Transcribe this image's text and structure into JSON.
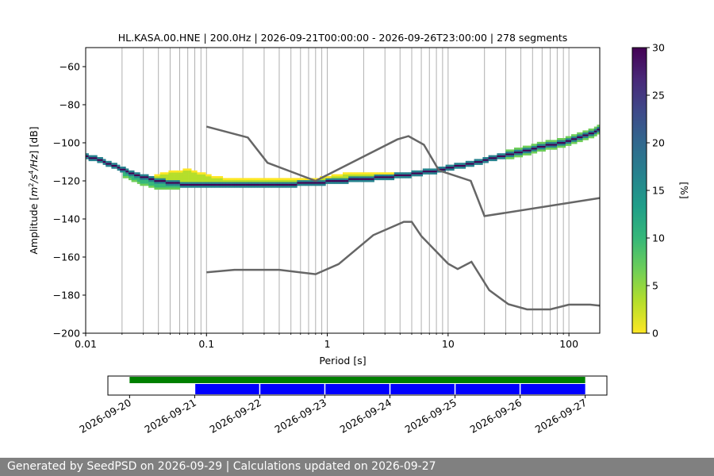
{
  "chart_data": [
    {
      "type": "heatmap",
      "title": "HL.KASA.00.HNE | 200.0Hz | 2026-09-21T00:00:00 - 2026-09-26T23:00:00 | 278 segments",
      "xlabel": "Period [s]",
      "ylabel_parts": [
        "Amplitude [",
        "m",
        "2",
        "/",
        "s",
        "4",
        "/",
        "Hz",
        "] [dB]"
      ],
      "x_scale": "log",
      "xlim": [
        0.01,
        180
      ],
      "ylim": [
        -200,
        -50
      ],
      "xticks": [
        {
          "value": 0.01,
          "label": "0.01"
        },
        {
          "value": 0.1,
          "label": "0.1"
        },
        {
          "value": 1,
          "label": "1"
        },
        {
          "value": 10,
          "label": "10"
        },
        {
          "value": 100,
          "label": "100"
        }
      ],
      "yticks": [
        {
          "value": -60,
          "label": "−60"
        },
        {
          "value": -80,
          "label": "−80"
        },
        {
          "value": -100,
          "label": "−100"
        },
        {
          "value": -120,
          "label": "−120"
        },
        {
          "value": -140,
          "label": "−140"
        },
        {
          "value": -160,
          "label": "−160"
        },
        {
          "value": -180,
          "label": "−180"
        },
        {
          "value": -200,
          "label": "−200"
        }
      ],
      "vertical_grid_periods": [
        0.1,
        0.2,
        0.3,
        0.4,
        0.5,
        0.6,
        0.7,
        0.8,
        0.9,
        1,
        2,
        3,
        4,
        5,
        6,
        7,
        8,
        9,
        10,
        20,
        30,
        40,
        50,
        60,
        70,
        80,
        90,
        100,
        0.02,
        0.03,
        0.04,
        0.05,
        0.06,
        0.07,
        0.08,
        0.09
      ],
      "colorbar": {
        "label": "[%]",
        "range": [
          0,
          30
        ],
        "ticks": [
          0,
          5,
          10,
          15,
          20,
          25,
          30
        ],
        "colormap": "viridis_r",
        "colors": [
          "#fde725",
          "#b5de2b",
          "#6ece58",
          "#35b779",
          "#1f9e89",
          "#26828e",
          "#31688e",
          "#3e4989",
          "#482878",
          "#440154"
        ]
      },
      "main_ridge": [
        [
          0.01,
          -107
        ],
        [
          0.013,
          -109
        ],
        [
          0.017,
          -112
        ],
        [
          0.022,
          -115
        ],
        [
          0.03,
          -118
        ],
        [
          0.04,
          -120
        ],
        [
          0.06,
          -121.5
        ],
        [
          0.1,
          -122.5
        ],
        [
          0.2,
          -122.5
        ],
        [
          0.4,
          -122
        ],
        [
          0.8,
          -121
        ],
        [
          1.5,
          -119.5
        ],
        [
          3,
          -118
        ],
        [
          5,
          -116.5
        ],
        [
          8,
          -114.5
        ],
        [
          15,
          -111
        ],
        [
          30,
          -106.5
        ],
        [
          60,
          -102
        ],
        [
          100,
          -99
        ],
        [
          140,
          -96
        ],
        [
          180,
          -93
        ]
      ],
      "spread_band": [
        [
          0.02,
          -117
        ],
        [
          0.025,
          -120
        ],
        [
          0.03,
          -122
        ],
        [
          0.04,
          -124
        ],
        [
          0.05,
          -124
        ],
        [
          0.07,
          -123
        ],
        [
          0.1,
          -122
        ],
        [
          0.15,
          -121.5
        ],
        [
          0.2,
          -121.5
        ]
      ],
      "upper_scatter": [
        [
          0.035,
          -118
        ],
        [
          0.045,
          -116
        ],
        [
          0.055,
          -115
        ],
        [
          0.07,
          -114
        ],
        [
          0.09,
          -116
        ],
        [
          0.12,
          -118
        ],
        [
          0.16,
          -119
        ],
        [
          0.25,
          -119
        ],
        [
          0.35,
          -118.5
        ],
        [
          0.5,
          -119
        ],
        [
          0.7,
          -119.5
        ],
        [
          1.5,
          -116
        ],
        [
          2,
          -116
        ],
        [
          3,
          -116
        ],
        [
          4,
          -116
        ],
        [
          6,
          -115
        ]
      ],
      "series": [
        {
          "name": "",
          "color": "#666666",
          "x": [
            0.1,
            0.22,
            0.32,
            0.8,
            3.8,
            4.7,
            6.3,
            8.4,
            15.4,
            20,
            180
          ],
          "y": [
            -91.5,
            -97.2,
            -110.5,
            -120,
            -98.2,
            -96.5,
            -101,
            -114.5,
            -120,
            -138.5,
            -129
          ]
        },
        {
          "name": "",
          "color": "#666666",
          "x": [
            0.1,
            0.17,
            0.4,
            0.8,
            1.24,
            2.4,
            4.3,
            5.0,
            6.0,
            10,
            12,
            15.6,
            21.9,
            31.6,
            45,
            70,
            100,
            150,
            180
          ],
          "y": [
            -168,
            -166.7,
            -166.7,
            -169,
            -163.7,
            -148.5,
            -141.5,
            -141.5,
            -149,
            -163.5,
            -166.3,
            -162.5,
            -177.4,
            -184.8,
            -187.5,
            -187.5,
            -185,
            -185,
            -185.5
          ]
        }
      ]
    },
    {
      "type": "timeline",
      "x_scale": "time",
      "xlim": [
        "2026-09-19T16:00:00",
        "2026-09-27T08:00:00"
      ],
      "xticks": [
        "2026-09-20",
        "2026-09-21",
        "2026-09-22",
        "2026-09-23",
        "2026-09-24",
        "2026-09-25",
        "2026-09-26",
        "2026-09-27"
      ],
      "tick_rotation_deg": -30,
      "bars": [
        {
          "color": "#008000",
          "start": "2026-09-20T00:00:00",
          "end": "2026-09-27T00:00:00"
        },
        {
          "color": "#0000ff",
          "segments": [
            [
              "2026-09-21T00:00:00",
              "2026-09-22T00:00:00"
            ],
            [
              "2026-09-22T00:00:00",
              "2026-09-23T00:00:00"
            ],
            [
              "2026-09-23T00:00:00",
              "2026-09-24T00:00:00"
            ],
            [
              "2026-09-24T00:00:00",
              "2026-09-25T00:00:00"
            ],
            [
              "2026-09-25T00:00:00",
              "2026-09-26T00:00:00"
            ],
            [
              "2026-09-26T00:00:00",
              "2026-09-27T00:00:00"
            ]
          ]
        }
      ]
    }
  ],
  "footer": {
    "text": "Generated by SeedPSD on 2026-09-29 | Calculations updated on 2026-09-27",
    "background": "#808080"
  }
}
